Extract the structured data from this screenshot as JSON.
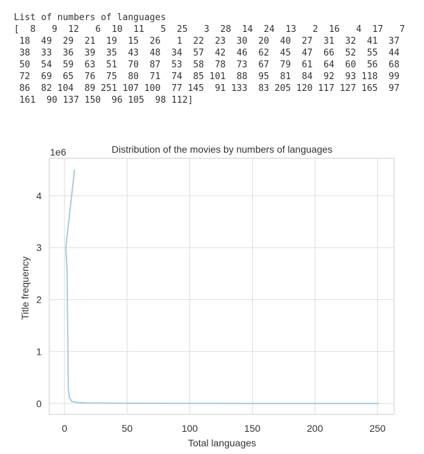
{
  "output": {
    "heading": "List of numbers of languages",
    "lines": [
      "[  8   9  12   6  10  11   5  25   3  28  14  24  13   2  16   4  17   7",
      " 18  49  29  21  19  15  26   1  22  23  30  20  40  27  31  32  41  37",
      " 38  33  36  39  35  43  48  34  57  42  46  62  45  47  66  52  55  44",
      " 50  54  59  63  51  70  87  53  58  78  73  67  79  61  64  60  56  68",
      " 72  69  65  76  75  80  71  74  85 101  88  95  81  84  92  93 118  99",
      " 86  82 104  89 251 107 100  77 145  91 133  83 205 120 117 127 165  97",
      " 161  90 137 150  96 105  98 112]"
    ]
  },
  "chart_data": {
    "type": "line",
    "title": "Distribution of the movies by numbers of languages",
    "x_label": "Total languages",
    "y_label": "Title frequency",
    "y_offset_text": "1e6",
    "x": [
      8,
      1,
      2,
      3,
      4,
      6,
      10,
      20,
      50,
      100,
      150,
      200,
      251
    ],
    "values": [
      4500000,
      3000000,
      2600000,
      300000,
      100000,
      40000,
      20000,
      10000,
      5000,
      2000,
      1000,
      500,
      100
    ],
    "color": "#a6cee3",
    "xlim": [
      -12.2,
      263.3
    ],
    "xticks": [
      0,
      50,
      100,
      150,
      200,
      250
    ],
    "ylim": [
      -210000,
      4720000
    ],
    "yticks": [
      {
        "value": 0,
        "label": "0"
      },
      {
        "value": 1000000,
        "label": "1"
      },
      {
        "value": 2000000,
        "label": "2"
      },
      {
        "value": 3000000,
        "label": "3"
      },
      {
        "value": 4000000,
        "label": "4"
      }
    ],
    "grid": true
  }
}
